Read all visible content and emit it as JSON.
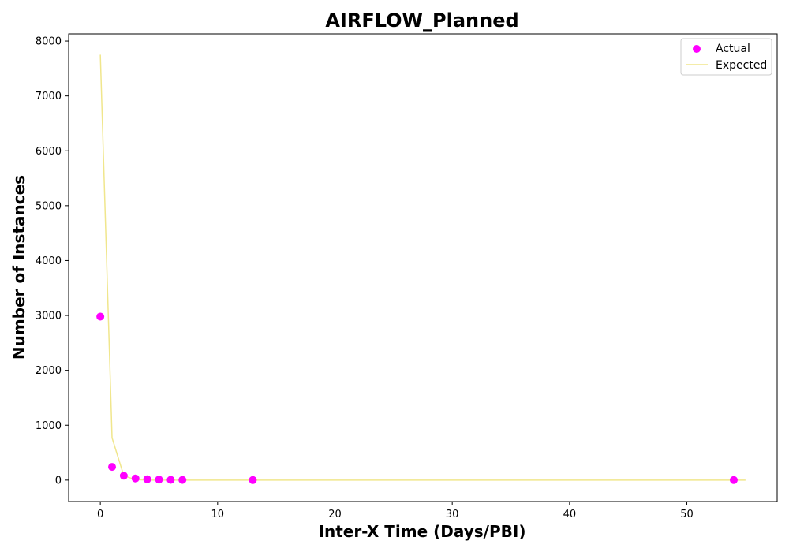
{
  "chart_data": {
    "type": "scatter",
    "title": "AIRFLOW_Planned",
    "xlabel": "Inter-X Time (Days/PBI)",
    "ylabel": "Number of Instances",
    "xlim": [
      -2.7,
      57.7
    ],
    "ylim": [
      -390,
      8130
    ],
    "xticks": [
      0,
      10,
      20,
      30,
      40,
      50
    ],
    "yticks": [
      0,
      1000,
      2000,
      3000,
      4000,
      5000,
      6000,
      7000,
      8000
    ],
    "grid": false,
    "legend": "top-right",
    "series": [
      {
        "name": "Actual",
        "kind": "scatter",
        "color": "#ff00ff",
        "points": [
          {
            "x": 0,
            "y": 2980
          },
          {
            "x": 1,
            "y": 240
          },
          {
            "x": 2,
            "y": 80
          },
          {
            "x": 3,
            "y": 30
          },
          {
            "x": 4,
            "y": 15
          },
          {
            "x": 5,
            "y": 10
          },
          {
            "x": 6,
            "y": 5
          },
          {
            "x": 7,
            "y": 3
          },
          {
            "x": 13,
            "y": 1
          },
          {
            "x": 54,
            "y": 1
          }
        ]
      },
      {
        "name": "Expected",
        "kind": "line",
        "color": "#f0e68c",
        "points": [
          {
            "x": 0,
            "y": 7750
          },
          {
            "x": 1,
            "y": 770
          },
          {
            "x": 2,
            "y": 80
          },
          {
            "x": 3,
            "y": 8
          },
          {
            "x": 4,
            "y": 1
          },
          {
            "x": 5,
            "y": 0
          },
          {
            "x": 10,
            "y": 0
          },
          {
            "x": 20,
            "y": 0
          },
          {
            "x": 30,
            "y": 0
          },
          {
            "x": 40,
            "y": 0
          },
          {
            "x": 50,
            "y": 0
          },
          {
            "x": 55,
            "y": 0
          }
        ]
      }
    ]
  }
}
